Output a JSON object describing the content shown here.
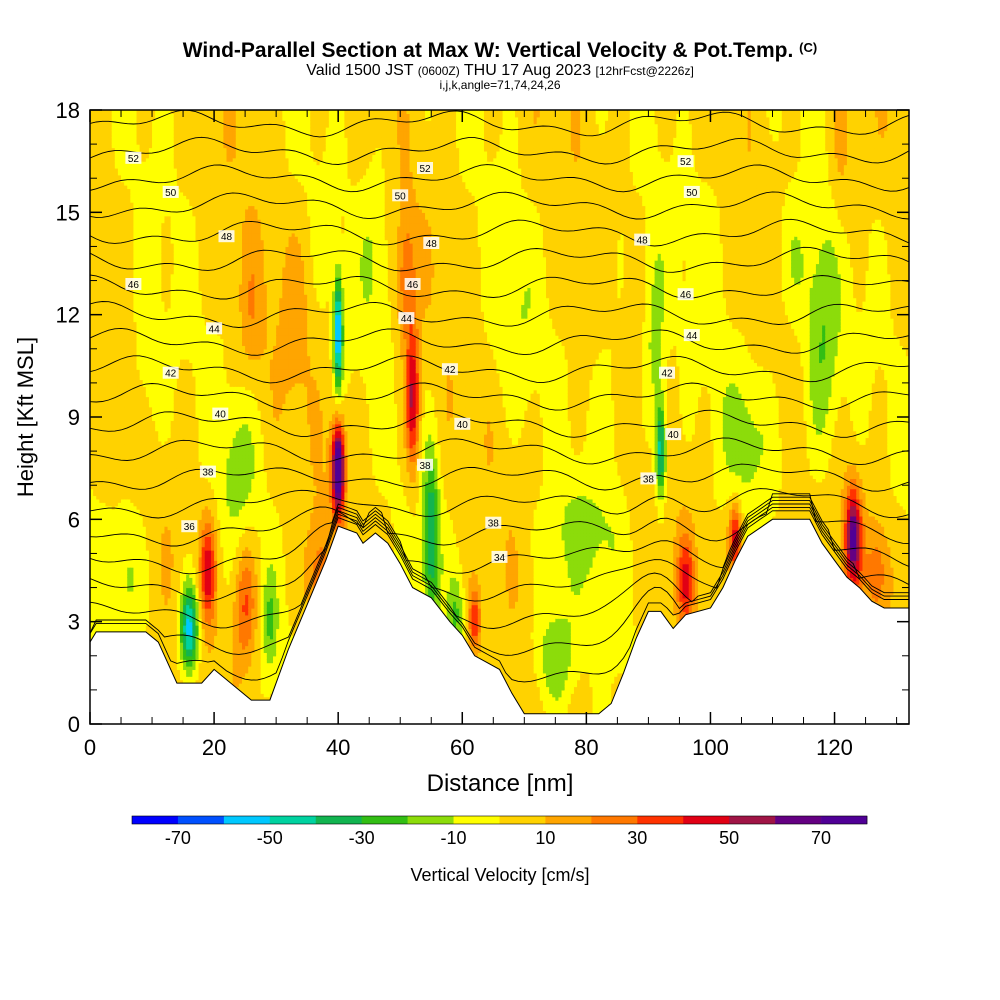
{
  "chart_data": {
    "type": "heatmap",
    "title": {
      "main": "Wind-Parallel Section at Max W: Vertical Velocity & Pot.Temp.",
      "main_mark": "(C)",
      "valid_a": "Valid 1500 JST",
      "valid_b": "(0600Z)",
      "valid_c": "THU 17 Aug 2023",
      "valid_d": "[12hrFcst@2226z]",
      "indices": "i,j,k,angle=71,74,24,26"
    },
    "xlabel": "Distance [nm]",
    "ylabel": "Height [Kft MSL]",
    "xlim": [
      0,
      132
    ],
    "ylim": [
      0,
      18
    ],
    "x_ticks": [
      0,
      20,
      40,
      60,
      80,
      100,
      120
    ],
    "y_ticks": [
      0,
      3,
      6,
      9,
      12,
      15,
      18
    ],
    "colorbar": {
      "label": "Vertical Velocity [cm/s]",
      "ticks": [
        -70,
        -50,
        -30,
        -10,
        10,
        30,
        50,
        70
      ],
      "boundaries": [
        -80,
        -70,
        -60,
        -50,
        -40,
        -30,
        -20,
        -10,
        0,
        10,
        20,
        30,
        40,
        50,
        60,
        70,
        80
      ],
      "colors": [
        "#0000ff",
        "#0050ff",
        "#00c8ff",
        "#00d2a0",
        "#12b450",
        "#32be14",
        "#8cdc0a",
        "#ffff00",
        "#ffd200",
        "#ffa500",
        "#ff7800",
        "#ff3200",
        "#e10014",
        "#a01446",
        "#640082",
        "#500096"
      ]
    },
    "contour_labels": [
      {
        "value": "52",
        "x": 7,
        "y": 16.6
      },
      {
        "value": "52",
        "x": 54,
        "y": 16.3
      },
      {
        "value": "52",
        "x": 96,
        "y": 16.5
      },
      {
        "value": "50",
        "x": 13,
        "y": 15.6
      },
      {
        "value": "50",
        "x": 50,
        "y": 15.5
      },
      {
        "value": "50",
        "x": 97,
        "y": 15.6
      },
      {
        "value": "48",
        "x": 22,
        "y": 14.3
      },
      {
        "value": "48",
        "x": 55,
        "y": 14.1
      },
      {
        "value": "48",
        "x": 89,
        "y": 14.2
      },
      {
        "value": "46",
        "x": 7,
        "y": 12.9
      },
      {
        "value": "46",
        "x": 52,
        "y": 12.9
      },
      {
        "value": "46",
        "x": 96,
        "y": 12.6
      },
      {
        "value": "44",
        "x": 20,
        "y": 11.6
      },
      {
        "value": "44",
        "x": 51,
        "y": 11.9
      },
      {
        "value": "44",
        "x": 97,
        "y": 11.4
      },
      {
        "value": "42",
        "x": 13,
        "y": 10.3
      },
      {
        "value": "42",
        "x": 58,
        "y": 10.4
      },
      {
        "value": "42",
        "x": 93,
        "y": 10.3
      },
      {
        "value": "40",
        "x": 21,
        "y": 9.1
      },
      {
        "value": "40",
        "x": 60,
        "y": 8.8
      },
      {
        "value": "40",
        "x": 94,
        "y": 8.5
      },
      {
        "value": "38",
        "x": 19,
        "y": 7.4
      },
      {
        "value": "38",
        "x": 54,
        "y": 7.6
      },
      {
        "value": "38",
        "x": 90,
        "y": 7.2
      },
      {
        "value": "38",
        "x": 65,
        "y": 5.9
      },
      {
        "value": "36",
        "x": 16,
        "y": 5.8
      },
      {
        "value": "34",
        "x": 66,
        "y": 4.9
      }
    ]
  }
}
